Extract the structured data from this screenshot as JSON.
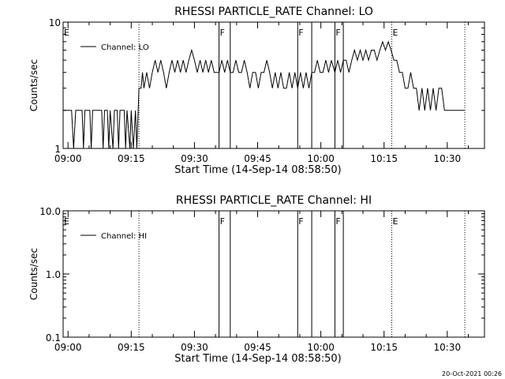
{
  "footer": {
    "date": "20-Oct-2021 00:26"
  },
  "chart_data": [
    {
      "type": "line",
      "title": "RHESSI PARTICLE_RATE Channel: LO",
      "xlabel": "Start Time (14-Sep-14 08:58:50)",
      "ylabel": "Counts/sec",
      "yscale": "log",
      "ylim": [
        1,
        10
      ],
      "xlim": [
        "08:58:50",
        "10:38:50"
      ],
      "xticks": [
        "09:00",
        "09:15",
        "09:30",
        "09:45",
        "10:00",
        "10:15",
        "10:30"
      ],
      "yticks": [
        "1",
        "10"
      ],
      "legend": {
        "label": "Channel: LO",
        "position": "top-left"
      },
      "markers": [
        {
          "label": "E",
          "time": "08:58:50",
          "style": "none"
        },
        {
          "label": "",
          "time": "09:16:50",
          "style": "dotted"
        },
        {
          "label": "F",
          "time": "09:35:50",
          "style": "solid"
        },
        {
          "label": "",
          "time": "09:38:30",
          "style": "solid"
        },
        {
          "label": "F",
          "time": "09:54:30",
          "style": "solid"
        },
        {
          "label": "",
          "time": "09:57:50",
          "style": "solid"
        },
        {
          "label": "F",
          "time": "10:03:20",
          "style": "solid"
        },
        {
          "label": "",
          "time": "10:05:20",
          "style": "solid"
        },
        {
          "label": "E",
          "time": "10:16:50",
          "style": "dotted"
        },
        {
          "label": "",
          "time": "10:34:10",
          "style": "dotted"
        }
      ],
      "series": [
        {
          "name": "Channel: LO",
          "points": [
            [
              "08:58:50",
              2
            ],
            [
              "09:00:50",
              2
            ],
            [
              "09:01:20",
              1
            ],
            [
              "09:01:50",
              2
            ],
            [
              "09:03:20",
              2
            ],
            [
              "09:03:40",
              1
            ],
            [
              "09:04:00",
              2
            ],
            [
              "09:05:10",
              2
            ],
            [
              "09:05:30",
              1
            ],
            [
              "09:05:50",
              2
            ],
            [
              "09:08:00",
              2
            ],
            [
              "09:08:20",
              1
            ],
            [
              "09:08:40",
              2
            ],
            [
              "09:09:20",
              2
            ],
            [
              "09:09:40",
              1
            ],
            [
              "09:10:00",
              2
            ],
            [
              "09:10:40",
              1
            ],
            [
              "09:11:00",
              2
            ],
            [
              "09:11:40",
              2
            ],
            [
              "09:12:00",
              1
            ],
            [
              "09:12:20",
              2
            ],
            [
              "09:13:20",
              2
            ],
            [
              "09:13:40",
              1
            ],
            [
              "09:14:00",
              2
            ],
            [
              "09:14:40",
              1
            ],
            [
              "09:15:00",
              2
            ],
            [
              "09:15:30",
              1
            ],
            [
              "09:16:00",
              2
            ],
            [
              "09:16:20",
              1
            ],
            [
              "09:16:50",
              3
            ],
            [
              "09:17:20",
              3
            ],
            [
              "09:17:40",
              4
            ],
            [
              "09:18:00",
              3
            ],
            [
              "09:18:40",
              4
            ],
            [
              "09:19:20",
              3
            ],
            [
              "09:20:00",
              4
            ],
            [
              "09:20:40",
              5
            ],
            [
              "09:21:20",
              4
            ],
            [
              "09:22:00",
              5
            ],
            [
              "09:22:40",
              4
            ],
            [
              "09:23:20",
              3
            ],
            [
              "09:24:00",
              4
            ],
            [
              "09:24:40",
              5
            ],
            [
              "09:25:20",
              4
            ],
            [
              "09:26:00",
              5
            ],
            [
              "09:26:40",
              4
            ],
            [
              "09:27:20",
              5
            ],
            [
              "09:28:00",
              4
            ],
            [
              "09:28:40",
              5
            ],
            [
              "09:29:20",
              6
            ],
            [
              "09:30:00",
              5
            ],
            [
              "09:30:40",
              4
            ],
            [
              "09:31:20",
              5
            ],
            [
              "09:32:00",
              4
            ],
            [
              "09:32:40",
              5
            ],
            [
              "09:33:20",
              4
            ],
            [
              "09:34:00",
              5
            ],
            [
              "09:34:40",
              4
            ],
            [
              "09:35:50",
              4
            ],
            [
              "09:36:30",
              5
            ],
            [
              "09:37:10",
              4
            ],
            [
              "09:37:50",
              5
            ],
            [
              "09:38:30",
              4
            ],
            [
              "09:39:10",
              4
            ],
            [
              "09:39:50",
              5
            ],
            [
              "09:40:30",
              4
            ],
            [
              "09:41:10",
              4
            ],
            [
              "09:41:50",
              5
            ],
            [
              "09:42:30",
              4
            ],
            [
              "09:43:10",
              3
            ],
            [
              "09:43:50",
              4
            ],
            [
              "09:44:30",
              4
            ],
            [
              "09:45:10",
              3
            ],
            [
              "09:45:50",
              4
            ],
            [
              "09:46:30",
              4
            ],
            [
              "09:47:10",
              5
            ],
            [
              "09:47:50",
              4
            ],
            [
              "09:48:30",
              3
            ],
            [
              "09:49:10",
              4
            ],
            [
              "09:49:50",
              3
            ],
            [
              "09:50:30",
              4
            ],
            [
              "09:51:10",
              3
            ],
            [
              "09:51:50",
              3
            ],
            [
              "09:52:30",
              4
            ],
            [
              "09:53:10",
              3
            ],
            [
              "09:53:50",
              4
            ],
            [
              "09:54:30",
              3
            ],
            [
              "09:55:10",
              4
            ],
            [
              "09:55:50",
              3
            ],
            [
              "09:56:30",
              4
            ],
            [
              "09:57:10",
              3
            ],
            [
              "09:57:50",
              4
            ],
            [
              "09:58:30",
              4
            ],
            [
              "09:59:10",
              5
            ],
            [
              "09:59:50",
              4
            ],
            [
              "10:00:30",
              4
            ],
            [
              "10:01:10",
              5
            ],
            [
              "10:01:50",
              4
            ],
            [
              "10:02:30",
              5
            ],
            [
              "10:03:20",
              4
            ],
            [
              "10:04:00",
              5
            ],
            [
              "10:04:40",
              4
            ],
            [
              "10:05:20",
              5
            ],
            [
              "10:06:00",
              5
            ],
            [
              "10:06:40",
              4
            ],
            [
              "10:07:20",
              5
            ],
            [
              "10:08:00",
              6
            ],
            [
              "10:08:40",
              5
            ],
            [
              "10:09:20",
              6
            ],
            [
              "10:10:00",
              5
            ],
            [
              "10:10:40",
              6
            ],
            [
              "10:11:20",
              5
            ],
            [
              "10:12:00",
              6
            ],
            [
              "10:12:40",
              6
            ],
            [
              "10:13:20",
              5
            ],
            [
              "10:14:00",
              6
            ],
            [
              "10:14:40",
              7
            ],
            [
              "10:15:20",
              6
            ],
            [
              "10:16:00",
              7
            ],
            [
              "10:16:40",
              6
            ],
            [
              "10:17:20",
              5
            ],
            [
              "10:18:00",
              5
            ],
            [
              "10:18:40",
              4
            ],
            [
              "10:19:20",
              4
            ],
            [
              "10:20:00",
              3
            ],
            [
              "10:20:40",
              3
            ],
            [
              "10:21:20",
              4
            ],
            [
              "10:22:00",
              3
            ],
            [
              "10:22:40",
              3
            ],
            [
              "10:23:20",
              2
            ],
            [
              "10:24:00",
              3
            ],
            [
              "10:24:40",
              2
            ],
            [
              "10:25:20",
              3
            ],
            [
              "10:26:00",
              2
            ],
            [
              "10:26:40",
              3
            ],
            [
              "10:27:20",
              2
            ],
            [
              "10:28:00",
              3
            ],
            [
              "10:28:40",
              3
            ],
            [
              "10:29:20",
              2
            ],
            [
              "10:30:00",
              2
            ],
            [
              "10:34:10",
              2
            ]
          ]
        }
      ]
    },
    {
      "type": "line",
      "title": "RHESSI PARTICLE_RATE Channel: HI",
      "xlabel": "Start Time (14-Sep-14 08:58:50)",
      "ylabel": "Counts/sec",
      "yscale": "log",
      "ylim": [
        0.1,
        10
      ],
      "xlim": [
        "08:58:50",
        "10:38:50"
      ],
      "xticks": [
        "09:00",
        "09:15",
        "09:30",
        "09:45",
        "10:00",
        "10:15",
        "10:30"
      ],
      "yticks": [
        "0.1",
        "1.0",
        "10.0"
      ],
      "legend": {
        "label": "Channel: HI",
        "position": "top-left"
      },
      "markers": [
        {
          "label": "E",
          "time": "08:58:50",
          "style": "none"
        },
        {
          "label": "",
          "time": "09:16:50",
          "style": "dotted"
        },
        {
          "label": "F",
          "time": "09:35:50",
          "style": "solid"
        },
        {
          "label": "",
          "time": "09:38:30",
          "style": "solid"
        },
        {
          "label": "F",
          "time": "09:54:30",
          "style": "solid"
        },
        {
          "label": "",
          "time": "09:57:50",
          "style": "solid"
        },
        {
          "label": "F",
          "time": "10:03:20",
          "style": "solid"
        },
        {
          "label": "",
          "time": "10:05:20",
          "style": "solid"
        },
        {
          "label": "E",
          "time": "10:16:50",
          "style": "dotted"
        },
        {
          "label": "",
          "time": "10:34:10",
          "style": "dotted"
        }
      ],
      "series": [
        {
          "name": "Channel: HI",
          "points": []
        }
      ]
    }
  ]
}
